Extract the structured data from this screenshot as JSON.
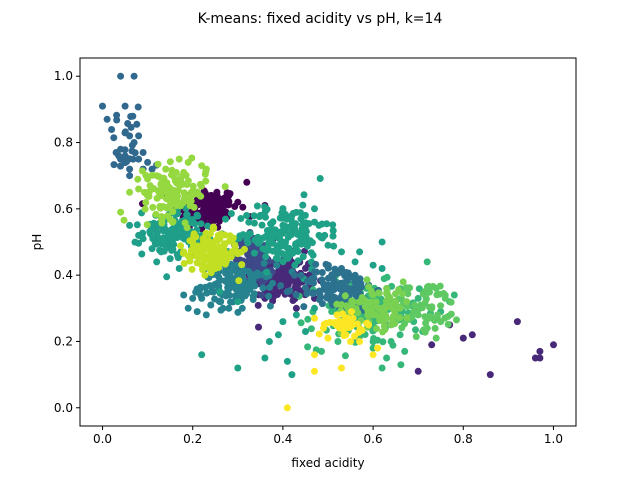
{
  "chart_data": {
    "type": "scatter",
    "title": "K-means: fixed acidity vs pH, k=14",
    "xlabel": "fixed acidity",
    "ylabel": "pH",
    "xlim": [
      -0.05,
      1.05
    ],
    "ylim": [
      -0.055,
      1.055
    ],
    "xticks": [
      "0.0",
      "0.2",
      "0.4",
      "0.6",
      "0.8",
      "1.0"
    ],
    "yticks": [
      "0.0",
      "0.2",
      "0.4",
      "0.6",
      "0.8",
      "1.0"
    ],
    "grid": false,
    "legend": "none",
    "colormap": "viridis",
    "clusters": [
      {
        "cluster": 0,
        "color": "#440154",
        "center": [
          0.23,
          0.6
        ],
        "spread": [
          0.035,
          0.032
        ],
        "n": 130,
        "points": [
          [
            0.32,
            0.68
          ],
          [
            0.36,
            0.61
          ],
          [
            0.35,
            0.58
          ],
          [
            0.26,
            0.57
          ],
          [
            0.2,
            0.61
          ],
          [
            0.19,
            0.64
          ],
          [
            0.28,
            0.64
          ],
          [
            0.3,
            0.62
          ],
          [
            0.22,
            0.54
          ]
        ]
      },
      {
        "cluster": 1,
        "color": "#482878",
        "center": [
          0.4,
          0.39
        ],
        "spread": [
          0.035,
          0.035
        ],
        "n": 150,
        "points": [
          [
            0.92,
            0.26
          ],
          [
            0.96,
            0.15
          ],
          [
            0.97,
            0.17
          ],
          [
            0.97,
            0.15
          ],
          [
            1.0,
            0.19
          ],
          [
            0.86,
            0.1
          ],
          [
            0.82,
            0.22
          ],
          [
            0.8,
            0.21
          ],
          [
            0.77,
            0.25
          ],
          [
            0.73,
            0.19
          ],
          [
            0.7,
            0.11
          ],
          [
            0.47,
            0.33
          ],
          [
            0.43,
            0.3
          ],
          [
            0.36,
            0.33
          ]
        ]
      },
      {
        "cluster": 2,
        "color": "#3e4989",
        "center": [
          0.33,
          0.44
        ],
        "spread": [
          0.025,
          0.035
        ],
        "n": 110,
        "points": [
          [
            0.3,
            0.5
          ],
          [
            0.36,
            0.47
          ],
          [
            0.28,
            0.43
          ],
          [
            0.34,
            0.4
          ],
          [
            0.31,
            0.38
          ]
        ]
      },
      {
        "cluster": 3,
        "color": "#31688e",
        "center": [
          0.05,
          0.8
        ],
        "spread": [
          0.025,
          0.06
        ],
        "n": 24,
        "points": [
          [
            0.04,
            1.0
          ],
          [
            0.07,
            1.0
          ],
          [
            0.0,
            0.91
          ],
          [
            0.05,
            0.91
          ],
          [
            0.01,
            0.87
          ],
          [
            0.06,
            0.82
          ],
          [
            0.08,
            0.82
          ],
          [
            0.07,
            0.8
          ],
          [
            0.03,
            0.77
          ],
          [
            0.04,
            0.75
          ],
          [
            0.05,
            0.74
          ],
          [
            0.08,
            0.75
          ],
          [
            0.09,
            0.77
          ],
          [
            0.1,
            0.74
          ],
          [
            0.06,
            0.72
          ],
          [
            0.09,
            0.72
          ],
          [
            0.11,
            0.72
          ],
          [
            0.05,
            0.76
          ],
          [
            0.04,
            0.78
          ],
          [
            0.06,
            0.7
          ]
        ]
      },
      {
        "cluster": 4,
        "color": "#26828e",
        "center": [
          0.3,
          0.37
        ],
        "spread": [
          0.04,
          0.03
        ],
        "n": 130,
        "points": [
          [
            0.18,
            0.34
          ],
          [
            0.2,
            0.33
          ],
          [
            0.19,
            0.3
          ],
          [
            0.21,
            0.29
          ],
          [
            0.24,
            0.31
          ],
          [
            0.26,
            0.32
          ],
          [
            0.28,
            0.3
          ],
          [
            0.31,
            0.3
          ],
          [
            0.23,
            0.28
          ],
          [
            0.22,
            0.33
          ]
        ]
      },
      {
        "cluster": 5,
        "color": "#1f9e89",
        "center": [
          0.16,
          0.53
        ],
        "spread": [
          0.035,
          0.035
        ],
        "n": 110,
        "points": [
          [
            0.09,
            0.51
          ],
          [
            0.11,
            0.48
          ],
          [
            0.12,
            0.44
          ],
          [
            0.13,
            0.47
          ],
          [
            0.15,
            0.45
          ],
          [
            0.17,
            0.42
          ],
          [
            0.2,
            0.46
          ],
          [
            0.22,
            0.52
          ],
          [
            0.24,
            0.49
          ],
          [
            0.06,
            0.55
          ],
          [
            0.08,
            0.52
          ]
        ]
      },
      {
        "cluster": 6,
        "color": "#35b779",
        "center": [
          0.58,
          0.28
        ],
        "spread": [
          0.06,
          0.05
        ],
        "n": 130,
        "points": [
          [
            0.72,
            0.44
          ],
          [
            0.7,
            0.33
          ],
          [
            0.69,
            0.26
          ],
          [
            0.71,
            0.23
          ],
          [
            0.65,
            0.26
          ],
          [
            0.64,
            0.2
          ],
          [
            0.63,
            0.15
          ],
          [
            0.66,
            0.22
          ],
          [
            0.67,
            0.17
          ],
          [
            0.6,
            0.18
          ],
          [
            0.57,
            0.27
          ],
          [
            0.78,
            0.34
          ],
          [
            0.77,
            0.32
          ],
          [
            0.75,
            0.29
          ],
          [
            0.68,
            0.31
          ],
          [
            0.62,
            0.12
          ]
        ]
      },
      {
        "cluster": 7,
        "color": "#1fa187",
        "center": [
          0.4,
          0.52
        ],
        "spread": [
          0.05,
          0.05
        ],
        "n": 150,
        "points": [
          [
            0.35,
            0.58
          ],
          [
            0.4,
            0.55
          ],
          [
            0.42,
            0.58
          ],
          [
            0.44,
            0.57
          ],
          [
            0.47,
            0.56
          ],
          [
            0.48,
            0.52
          ],
          [
            0.5,
            0.49
          ],
          [
            0.53,
            0.47
          ],
          [
            0.56,
            0.44
          ],
          [
            0.57,
            0.47
          ],
          [
            0.62,
            0.42
          ],
          [
            0.62,
            0.5
          ],
          [
            0.6,
            0.43
          ],
          [
            0.47,
            0.6
          ],
          [
            0.48,
            0.55
          ],
          [
            0.37,
            0.51
          ],
          [
            0.3,
            0.32
          ],
          [
            0.26,
            0.35
          ],
          [
            0.22,
            0.16
          ],
          [
            0.3,
            0.12
          ],
          [
            0.36,
            0.15
          ],
          [
            0.37,
            0.2
          ],
          [
            0.39,
            0.22
          ],
          [
            0.41,
            0.14
          ],
          [
            0.42,
            0.1
          ],
          [
            0.4,
            0.26
          ],
          [
            0.43,
            0.28
          ],
          [
            0.45,
            0.23
          ],
          [
            0.47,
            0.3
          ]
        ]
      },
      {
        "cluster": 8,
        "color": "#2c728e",
        "center": [
          0.52,
          0.36
        ],
        "spread": [
          0.04,
          0.035
        ],
        "n": 130,
        "points": [
          [
            0.59,
            0.37
          ],
          [
            0.56,
            0.4
          ],
          [
            0.53,
            0.42
          ],
          [
            0.58,
            0.33
          ],
          [
            0.51,
            0.31
          ],
          [
            0.48,
            0.35
          ],
          [
            0.46,
            0.38
          ],
          [
            0.57,
            0.3
          ]
        ]
      },
      {
        "cluster": 9,
        "color": "#5ec962",
        "center": [
          0.72,
          0.3
        ],
        "spread": [
          0.04,
          0.04
        ],
        "n": 60,
        "points": [
          [
            0.74,
            0.36
          ],
          [
            0.76,
            0.33
          ],
          [
            0.73,
            0.3
          ],
          [
            0.7,
            0.28
          ],
          [
            0.75,
            0.26
          ],
          [
            0.72,
            0.24
          ],
          [
            0.69,
            0.29
          ],
          [
            0.74,
            0.21
          ]
        ]
      },
      {
        "cluster": 10,
        "color": "#7ad151",
        "center": [
          0.61,
          0.31
        ],
        "spread": [
          0.04,
          0.035
        ],
        "n": 80,
        "points": [
          [
            0.63,
            0.36
          ],
          [
            0.6,
            0.34
          ],
          [
            0.62,
            0.28
          ],
          [
            0.59,
            0.26
          ],
          [
            0.66,
            0.3
          ],
          [
            0.64,
            0.25
          ]
        ]
      },
      {
        "cluster": 11,
        "color": "#95d840",
        "center": [
          0.16,
          0.65
        ],
        "spread": [
          0.035,
          0.04
        ],
        "n": 120,
        "points": [
          [
            0.04,
            0.59
          ],
          [
            0.06,
            0.65
          ],
          [
            0.08,
            0.66
          ],
          [
            0.1,
            0.69
          ],
          [
            0.12,
            0.7
          ],
          [
            0.14,
            0.72
          ],
          [
            0.17,
            0.75
          ],
          [
            0.19,
            0.74
          ],
          [
            0.22,
            0.73
          ],
          [
            0.23,
            0.72
          ],
          [
            0.18,
            0.71
          ],
          [
            0.1,
            0.64
          ]
        ]
      },
      {
        "cluster": 12,
        "color": "#c2df23",
        "center": [
          0.24,
          0.47
        ],
        "spread": [
          0.03,
          0.03
        ],
        "n": 150,
        "points": [
          [
            0.18,
            0.47
          ],
          [
            0.2,
            0.5
          ],
          [
            0.26,
            0.51
          ],
          [
            0.29,
            0.47
          ],
          [
            0.22,
            0.43
          ],
          [
            0.25,
            0.42
          ]
        ]
      },
      {
        "cluster": 13,
        "color": "#fde725",
        "center": [
          0.54,
          0.25
        ],
        "spread": [
          0.02,
          0.015
        ],
        "n": 40,
        "points": [
          [
            0.47,
            0.27
          ],
          [
            0.49,
            0.24
          ],
          [
            0.5,
            0.21
          ],
          [
            0.54,
            0.22
          ],
          [
            0.57,
            0.23
          ],
          [
            0.59,
            0.25
          ],
          [
            0.61,
            0.18
          ],
          [
            0.6,
            0.16
          ],
          [
            0.57,
            0.2
          ],
          [
            0.47,
            0.16
          ],
          [
            0.47,
            0.11
          ],
          [
            0.53,
            0.12
          ],
          [
            0.55,
            0.2
          ],
          [
            0.52,
            0.28
          ],
          [
            0.41,
            0.0
          ]
        ]
      }
    ]
  }
}
